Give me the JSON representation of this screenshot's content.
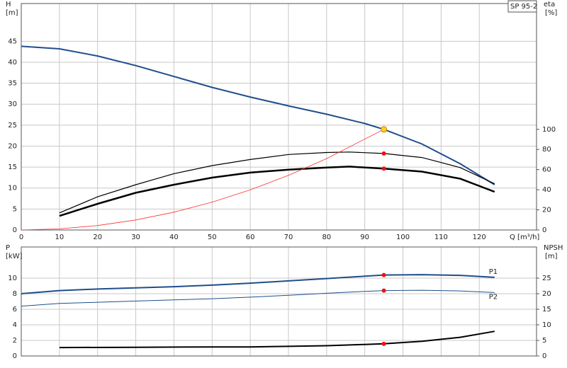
{
  "chart_data": [
    {
      "type": "line",
      "y_label": "H",
      "y_unit": "[m]",
      "y2_label": "eta",
      "y2_unit": "[%]",
      "x_label": "Q [m³/h]",
      "legend_box": "SP 95-2",
      "xlim": [
        0,
        135
      ],
      "xticks": [
        0,
        10,
        20,
        30,
        40,
        50,
        60,
        70,
        80,
        90,
        100,
        110,
        120
      ],
      "ylim": [
        0,
        54
      ],
      "yticks": [
        0,
        5,
        10,
        15,
        20,
        25,
        30,
        35,
        40,
        45
      ],
      "y2lim": [
        0,
        225
      ],
      "y2ticks": [
        0,
        20,
        40,
        60,
        80,
        100
      ],
      "grid": true,
      "series": [
        {
          "axis": "y",
          "color": "#1f4e8c",
          "line_width": 2,
          "x": [
            0,
            10,
            20,
            30,
            40,
            50,
            60,
            70,
            80,
            90,
            95,
            105,
            115,
            124
          ],
          "values": [
            43.8,
            43.2,
            41.5,
            39.2,
            36.6,
            34,
            31.7,
            29.6,
            27.6,
            25.4,
            24,
            20.5,
            15.8,
            10.8
          ]
        },
        {
          "axis": "y2",
          "color": "#000000",
          "line_width": 1.2,
          "x": [
            10,
            20,
            30,
            40,
            50,
            60,
            70,
            80,
            86,
            95,
            105,
            115,
            124
          ],
          "values": [
            17,
            33,
            45,
            56,
            64,
            70,
            75,
            77,
            77.5,
            76,
            72,
            62,
            46
          ]
        },
        {
          "axis": "y2",
          "color": "#000000",
          "line_width": 2.5,
          "x": [
            10,
            20,
            30,
            40,
            50,
            60,
            70,
            80,
            86,
            95,
            105,
            115,
            124
          ],
          "values": [
            14,
            26,
            37,
            45,
            52,
            57,
            60,
            62,
            63,
            61,
            58,
            51,
            38
          ]
        },
        {
          "axis": "y",
          "color": "#ff3030",
          "line_width": 0.8,
          "x": [
            0,
            10,
            20,
            30,
            40,
            50,
            60,
            70,
            80,
            95
          ],
          "values": [
            0,
            0.27,
            1.06,
            2.39,
            4.25,
            6.65,
            9.57,
            13.03,
            17.02,
            24
          ]
        }
      ],
      "points": [
        {
          "axis": "y",
          "x": 95,
          "y": 24,
          "color": "#ffd21f"
        },
        {
          "axis": "y2",
          "x": 95,
          "y": 76,
          "color": "#ee1111"
        },
        {
          "axis": "y2",
          "x": 95,
          "y": 61,
          "color": "#ee1111"
        }
      ]
    },
    {
      "type": "line",
      "y_label": "P",
      "y_unit": "[kW]",
      "y2_label": "NPSH",
      "y2_unit": "[m]",
      "xlim": [
        0,
        135
      ],
      "xticks": [
        0,
        10,
        20,
        30,
        40,
        50,
        60,
        70,
        80,
        90,
        100,
        110,
        120
      ],
      "ylim": [
        0,
        14
      ],
      "yticks": [
        0,
        2,
        4,
        6,
        8,
        10
      ],
      "y2lim": [
        0,
        35
      ],
      "y2ticks": [
        0,
        5,
        10,
        15,
        20,
        25
      ],
      "grid": true,
      "series": [
        {
          "name": "P1",
          "axis": "y",
          "color": "#1f4e8c",
          "line_width": 2,
          "x": [
            0,
            10,
            20,
            30,
            40,
            50,
            60,
            70,
            80,
            90,
            95,
            105,
            115,
            124
          ],
          "values": [
            8.0,
            8.4,
            8.6,
            8.75,
            8.9,
            9.1,
            9.35,
            9.65,
            9.95,
            10.25,
            10.4,
            10.45,
            10.35,
            10.1
          ]
        },
        {
          "name": "P2",
          "axis": "y",
          "color": "#1f4e8c",
          "line_width": 1,
          "x": [
            0,
            10,
            20,
            30,
            40,
            50,
            60,
            70,
            80,
            90,
            95,
            105,
            115,
            124
          ],
          "values": [
            6.4,
            6.75,
            6.9,
            7.05,
            7.2,
            7.35,
            7.55,
            7.8,
            8.05,
            8.3,
            8.4,
            8.45,
            8.35,
            8.15
          ]
        },
        {
          "axis": "y2",
          "color": "#000000",
          "line_width": 2,
          "x": [
            10,
            30,
            50,
            60,
            70,
            80,
            90,
            95,
            105,
            115,
            124
          ],
          "values": [
            2.7,
            2.8,
            2.9,
            2.9,
            3.1,
            3.3,
            3.7,
            3.9,
            4.7,
            6.0,
            7.9
          ]
        }
      ],
      "points": [
        {
          "axis": "y",
          "x": 95,
          "y": 10.4,
          "color": "#ee1111"
        },
        {
          "axis": "y",
          "x": 95,
          "y": 8.4,
          "color": "#ee1111"
        },
        {
          "axis": "y2",
          "x": 95,
          "y": 3.9,
          "color": "#ee1111"
        }
      ]
    }
  ]
}
